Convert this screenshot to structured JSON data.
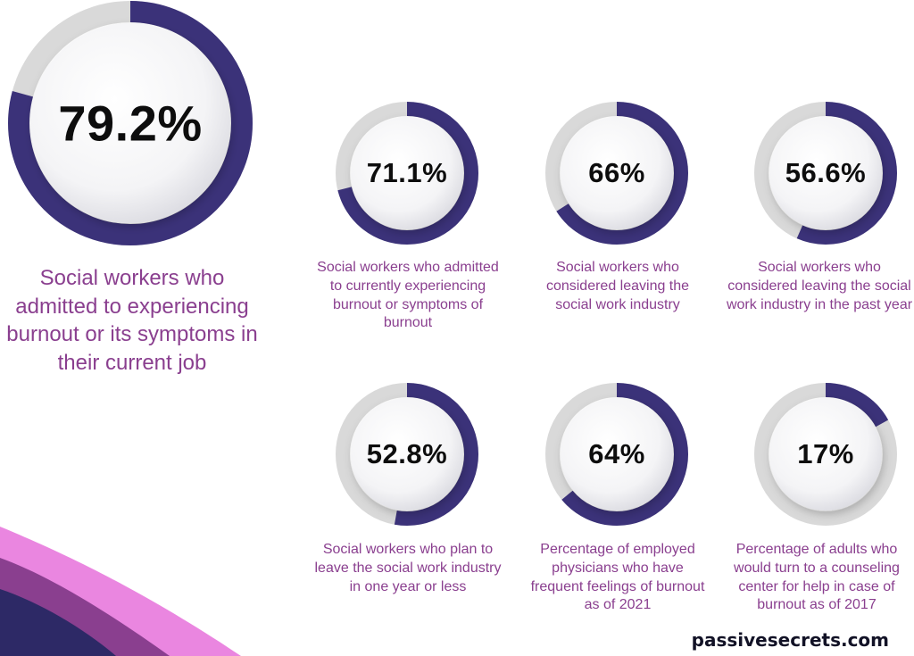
{
  "colors": {
    "ring_fill": "#3b3279",
    "ring_track": "#d9d9d9",
    "caption": "#8a3f8f",
    "value_text": "#0d0d0d",
    "decor_purple": "#8a3f8f",
    "decor_pink": "#ea86e0",
    "decor_navy": "#2d2966"
  },
  "brand": "passivesecrets.com",
  "chart_data": {
    "type": "donut",
    "unit": "%",
    "items": [
      {
        "label": "79.2%",
        "value": 79.2,
        "caption": "Social workers who admitted to experiencing burnout or its symptoms in their current job"
      },
      {
        "label": "71.1%",
        "value": 71.1,
        "caption": "Social workers who admitted to currently experiencing burnout or symptoms of burnout"
      },
      {
        "label": "66%",
        "value": 66,
        "caption": "Social workers who considered leaving the social work industry"
      },
      {
        "label": "56.6%",
        "value": 56.6,
        "caption": "Social workers who considered leaving the social work industry in the past year"
      },
      {
        "label": "52.8%",
        "value": 52.8,
        "caption": "Social workers who plan to leave the social work industry in one year or less"
      },
      {
        "label": "64%",
        "value": 64,
        "caption": "Percentage of employed physicians who have frequent feelings of burnout as of 2021"
      },
      {
        "label": "17%",
        "value": 17,
        "caption": "Percentage of adults who would turn to a counseling center for help in case of burnout as of 2017"
      }
    ]
  }
}
